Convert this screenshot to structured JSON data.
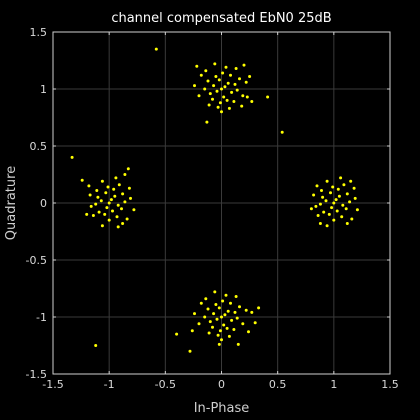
{
  "chart_data": {
    "type": "scatter",
    "title": "channel compensated EbN0 25dB",
    "xlabel": "In-Phase",
    "ylabel": "Quadrature",
    "xlim": [
      -1.5,
      1.5
    ],
    "ylim": [
      -1.5,
      1.5
    ],
    "xticks": [
      -1.5,
      -1,
      -0.5,
      0,
      0.5,
      1,
      1.5
    ],
    "yticks": [
      -1.5,
      -1,
      -0.5,
      0,
      0.5,
      1,
      1.5
    ],
    "xtick_labels": [
      "-1.5",
      "-1",
      "-0.5",
      "0",
      "0.5",
      "1",
      "1.5"
    ],
    "ytick_labels": [
      "-1.5",
      "-1",
      "-0.5",
      "0",
      "0.5",
      "1",
      "1.5"
    ],
    "grid": true,
    "colors": {
      "background": "#000000",
      "points": "#ffff00",
      "grid": "#3a3a3a",
      "axes": "#cfcfcf"
    },
    "clusters": [
      {
        "center": [
          0,
          1
        ],
        "points": [
          [
            0.0,
            1.0
          ],
          [
            0.03,
            1.02
          ],
          [
            -0.04,
            0.98
          ],
          [
            0.06,
            1.05
          ],
          [
            -0.07,
            1.03
          ],
          [
            0.02,
            0.93
          ],
          [
            -0.02,
            1.08
          ],
          [
            0.09,
            0.97
          ],
          [
            -0.1,
            0.96
          ],
          [
            0.05,
            0.9
          ],
          [
            -0.05,
            1.11
          ],
          [
            0.12,
            1.04
          ],
          [
            -0.12,
            1.07
          ],
          [
            0.01,
            1.14
          ],
          [
            -0.01,
            0.88
          ],
          [
            0.14,
            0.99
          ],
          [
            -0.15,
            1.0
          ],
          [
            0.08,
            1.12
          ],
          [
            -0.08,
            0.91
          ],
          [
            0.16,
            1.09
          ],
          [
            -0.18,
            1.12
          ],
          [
            0.11,
            0.89
          ],
          [
            -0.11,
            0.86
          ],
          [
            0.04,
            1.19
          ],
          [
            -0.03,
            0.84
          ],
          [
            0.19,
            0.94
          ],
          [
            -0.2,
            0.94
          ],
          [
            0.22,
            1.06
          ],
          [
            0.13,
            1.18
          ],
          [
            -0.14,
            1.16
          ],
          [
            0.07,
            0.83
          ],
          [
            -0.06,
            1.22
          ],
          [
            0.25,
            1.11
          ],
          [
            -0.24,
            1.03
          ],
          [
            0.0,
            0.8
          ],
          [
            -0.13,
            0.71
          ],
          [
            0.18,
            0.85
          ],
          [
            0.27,
            0.89
          ],
          [
            -0.22,
            1.2
          ],
          [
            0.2,
            1.21
          ]
        ]
      },
      {
        "center": [
          0,
          -1
        ],
        "points": [
          [
            0.0,
            -1.0
          ],
          [
            0.03,
            -0.98
          ],
          [
            -0.04,
            -1.02
          ],
          [
            0.06,
            -0.95
          ],
          [
            -0.07,
            -0.97
          ],
          [
            0.02,
            -1.07
          ],
          [
            -0.02,
            -0.92
          ],
          [
            0.09,
            -1.03
          ],
          [
            -0.1,
            -1.04
          ],
          [
            0.05,
            -1.1
          ],
          [
            -0.05,
            -0.89
          ],
          [
            0.12,
            -0.96
          ],
          [
            -0.12,
            -0.93
          ],
          [
            0.01,
            -0.86
          ],
          [
            -0.01,
            -1.12
          ],
          [
            0.14,
            -1.01
          ],
          [
            -0.15,
            -1.0
          ],
          [
            0.08,
            -0.88
          ],
          [
            -0.08,
            -1.09
          ],
          [
            0.16,
            -0.91
          ],
          [
            -0.18,
            -0.88
          ],
          [
            0.11,
            -1.11
          ],
          [
            -0.11,
            -1.14
          ],
          [
            0.04,
            -0.81
          ],
          [
            -0.03,
            -1.16
          ],
          [
            0.19,
            -1.06
          ],
          [
            -0.2,
            -1.06
          ],
          [
            0.22,
            -0.94
          ],
          [
            0.13,
            -0.82
          ],
          [
            -0.14,
            -0.84
          ],
          [
            0.07,
            -1.17
          ],
          [
            -0.06,
            -0.78
          ],
          [
            0.27,
            -0.96
          ],
          [
            -0.24,
            -0.97
          ],
          [
            0.0,
            -1.2
          ],
          [
            0.3,
            -1.05
          ],
          [
            -0.26,
            -1.12
          ],
          [
            0.24,
            -1.13
          ],
          [
            -0.4,
            -1.15
          ],
          [
            0.15,
            -1.24
          ],
          [
            -0.02,
            -1.24
          ],
          [
            -0.28,
            -1.3
          ],
          [
            0.33,
            -0.92
          ]
        ]
      },
      {
        "center": [
          1,
          0
        ],
        "points": [
          [
            1.0,
            0.0
          ],
          [
            1.02,
            0.03
          ],
          [
            0.98,
            -0.04
          ],
          [
            1.05,
            0.06
          ],
          [
            1.03,
            -0.07
          ],
          [
            0.93,
            0.02
          ],
          [
            1.08,
            -0.02
          ],
          [
            0.97,
            0.09
          ],
          [
            0.96,
            -0.1
          ],
          [
            0.9,
            0.05
          ],
          [
            1.11,
            -0.05
          ],
          [
            1.04,
            0.12
          ],
          [
            1.07,
            -0.12
          ],
          [
            1.14,
            0.01
          ],
          [
            0.88,
            -0.01
          ],
          [
            0.99,
            0.14
          ],
          [
            1.0,
            -0.15
          ],
          [
            1.12,
            0.08
          ],
          [
            0.91,
            -0.08
          ],
          [
            1.09,
            0.16
          ],
          [
            1.12,
            -0.18
          ],
          [
            0.89,
            0.11
          ],
          [
            0.86,
            -0.11
          ],
          [
            1.19,
            0.04
          ],
          [
            0.84,
            -0.03
          ],
          [
            0.94,
            0.19
          ],
          [
            0.94,
            -0.2
          ],
          [
            1.06,
            0.22
          ],
          [
            1.18,
            0.13
          ],
          [
            1.16,
            -0.14
          ],
          [
            0.82,
            0.07
          ],
          [
            1.21,
            -0.06
          ],
          [
            0.88,
            -0.18
          ],
          [
            0.85,
            0.15
          ],
          [
            1.15,
            0.19
          ],
          [
            0.8,
            -0.05
          ]
        ]
      },
      {
        "center": [
          -1,
          0
        ],
        "points": [
          [
            -1.0,
            0.0
          ],
          [
            -0.98,
            0.03
          ],
          [
            -1.02,
            -0.04
          ],
          [
            -0.95,
            0.06
          ],
          [
            -0.97,
            -0.07
          ],
          [
            -1.07,
            0.02
          ],
          [
            -0.92,
            -0.02
          ],
          [
            -1.03,
            0.09
          ],
          [
            -1.04,
            -0.1
          ],
          [
            -1.1,
            0.05
          ],
          [
            -0.89,
            -0.05
          ],
          [
            -0.96,
            0.12
          ],
          [
            -0.93,
            -0.12
          ],
          [
            -0.86,
            0.01
          ],
          [
            -1.12,
            -0.01
          ],
          [
            -1.01,
            0.14
          ],
          [
            -1.0,
            -0.15
          ],
          [
            -0.88,
            0.08
          ],
          [
            -1.09,
            -0.08
          ],
          [
            -0.91,
            0.16
          ],
          [
            -0.88,
            -0.18
          ],
          [
            -1.11,
            0.11
          ],
          [
            -1.14,
            -0.11
          ],
          [
            -0.81,
            0.04
          ],
          [
            -1.16,
            -0.03
          ],
          [
            -1.06,
            0.19
          ],
          [
            -1.06,
            -0.2
          ],
          [
            -0.94,
            0.22
          ],
          [
            -0.82,
            0.13
          ],
          [
            -0.84,
            -0.14
          ],
          [
            -1.17,
            0.07
          ],
          [
            -0.78,
            -0.06
          ],
          [
            -1.18,
            0.15
          ],
          [
            -0.86,
            0.25
          ],
          [
            -0.92,
            -0.21
          ],
          [
            -1.2,
            -0.1
          ],
          [
            -0.83,
            0.3
          ]
        ]
      },
      {
        "center": "outliers",
        "points": [
          [
            -0.58,
            1.35
          ],
          [
            0.23,
            0.93
          ],
          [
            0.41,
            0.93
          ],
          [
            0.54,
            0.62
          ],
          [
            -1.33,
            0.4
          ],
          [
            -1.24,
            0.2
          ],
          [
            -1.12,
            -1.25
          ]
        ]
      }
    ]
  }
}
